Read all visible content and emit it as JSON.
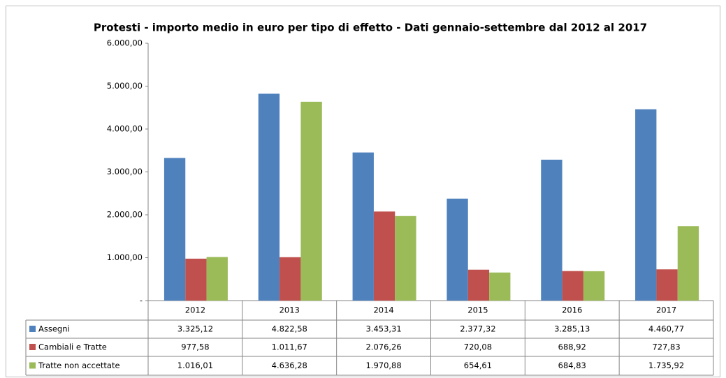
{
  "chart_data": {
    "type": "bar",
    "title": "Protesti - importo medio in euro per tipo di effetto - Dati gennaio-settembre dal 2012 al 2017",
    "categories": [
      "2012",
      "2013",
      "2014",
      "2015",
      "2016",
      "2017"
    ],
    "series": [
      {
        "name": "Assegni",
        "color": "#4f81bd",
        "values": [
          3325.12,
          4822.58,
          3453.31,
          2377.32,
          3285.13,
          4460.77
        ],
        "value_labels": [
          "3.325,12",
          "4.822,58",
          "3.453,31",
          "2.377,32",
          "3.285,13",
          "4.460,77"
        ]
      },
      {
        "name": "Cambiali e Tratte",
        "color": "#c0504d",
        "values": [
          977.58,
          1011.67,
          2076.26,
          720.08,
          688.92,
          727.83
        ],
        "value_labels": [
          "977,58",
          "1.011,67",
          "2.076,26",
          "720,08",
          "688,92",
          "727,83"
        ]
      },
      {
        "name": "Tratte non accettate",
        "color": "#9bbb59",
        "values": [
          1016.01,
          4636.28,
          1970.88,
          654.61,
          684.83,
          1735.92
        ],
        "value_labels": [
          "1.016,01",
          "4.636,28",
          "1.970,88",
          "654,61",
          "684,83",
          "1.735,92"
        ]
      }
    ],
    "ylim": [
      0,
      6000
    ],
    "yticks": [
      {
        "value": 0,
        "label": "-"
      },
      {
        "value": 1000,
        "label": "1.000,00"
      },
      {
        "value": 2000,
        "label": "2.000,00"
      },
      {
        "value": 3000,
        "label": "3.000,00"
      },
      {
        "value": 4000,
        "label": "4.000,00"
      },
      {
        "value": 5000,
        "label": "5.000,00"
      },
      {
        "value": 6000,
        "label": "6.000,00"
      }
    ],
    "grid": false
  }
}
